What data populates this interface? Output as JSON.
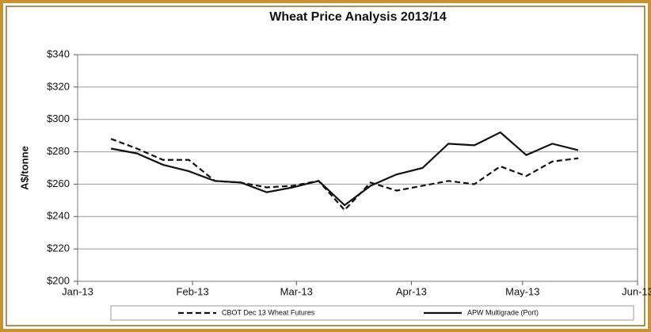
{
  "chart_data": {
    "type": "line",
    "title": "Wheat Price Analysis  2013/14",
    "y_label": "A$/tonne",
    "x": [
      9,
      16,
      23,
      30,
      37,
      44,
      51,
      58,
      65,
      72,
      79,
      86,
      93,
      100,
      107,
      114,
      121,
      128,
      135
    ],
    "series": [
      {
        "name": "CBOT Dec 13 Wheat Futures",
        "color": "#111111",
        "dash": true,
        "values": [
          288,
          282,
          275,
          275,
          262,
          261,
          258,
          259,
          262,
          244,
          261,
          256,
          259,
          262,
          260,
          271,
          265,
          274,
          276
        ]
      },
      {
        "name": "APW Multigrade (Port)",
        "color": "#111111",
        "dash": false,
        "values": [
          282,
          279,
          272,
          268,
          262,
          261,
          255,
          258,
          262,
          247,
          259,
          266,
          270,
          285,
          284,
          292,
          278,
          285,
          281
        ]
      }
    ],
    "xlim": [
      0,
      151
    ],
    "xticks": [
      {
        "value": 0,
        "label": "Jan-13"
      },
      {
        "value": 31,
        "label": "Feb-13"
      },
      {
        "value": 59,
        "label": "Mar-13"
      },
      {
        "value": 90,
        "label": "Apr-13"
      },
      {
        "value": 120,
        "label": "May-13"
      },
      {
        "value": 151,
        "label": "Jun-13"
      }
    ],
    "ylim": [
      200,
      340
    ],
    "yticks": [
      {
        "value": 200,
        "label": "$200"
      },
      {
        "value": 220,
        "label": "$220"
      },
      {
        "value": 240,
        "label": "$240"
      },
      {
        "value": 260,
        "label": "$260"
      },
      {
        "value": 280,
        "label": "$280"
      },
      {
        "value": 300,
        "label": "$300"
      },
      {
        "value": 320,
        "label": "$320"
      },
      {
        "value": 340,
        "label": "$340"
      }
    ],
    "grid": true
  }
}
